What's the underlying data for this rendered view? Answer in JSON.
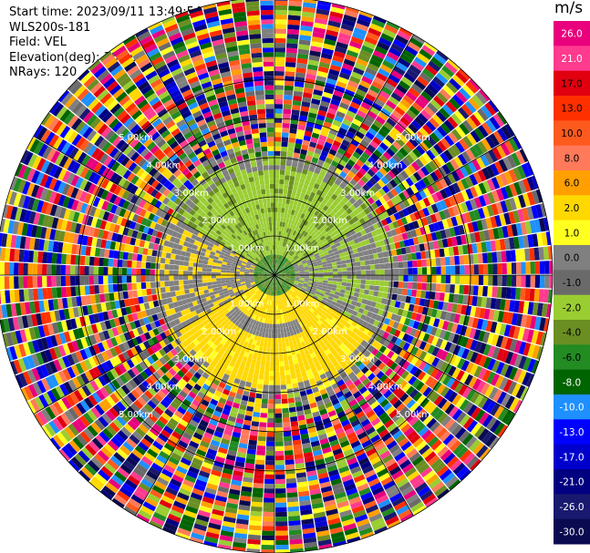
{
  "header": {
    "start_time": "Start time: 2023/09/11 13:49:54",
    "instrument": "WLS200s-181",
    "field": "Field: VEL",
    "elevation": "Elevation(deg): 35.30",
    "nrays": "NRays: 120"
  },
  "chart_data": {
    "type": "heatmap",
    "projection": "polar-ppi",
    "field": "VEL",
    "units": "m/s",
    "nrays": 120,
    "elevation_deg": 35.3,
    "range_ring_labels": [
      "1.00km",
      "2.00km",
      "3.00km",
      "4.00km",
      "5.00km"
    ],
    "range_rings_km": [
      1,
      2,
      3,
      4,
      5
    ],
    "max_range_km": 7.0,
    "clean_data_range_km": 3.0,
    "colorbar": {
      "unit": "m/s",
      "tick_labels": [
        "26.0",
        "21.0",
        "17.0",
        "13.0",
        "10.0",
        "8.0",
        "6.0",
        "2.0",
        "1.0",
        "0.0",
        "-1.0",
        "-2.0",
        "-4.0",
        "-6.0",
        "-8.0",
        "-10.0",
        "-13.0",
        "-17.0",
        "-21.0",
        "-26.0",
        "-30.0"
      ],
      "colors": [
        "#e8007d",
        "#ff3b8f",
        "#e00010",
        "#ff3000",
        "#ff5a1e",
        "#ff7a5a",
        "#ffa000",
        "#ffd800",
        "#ffff20",
        "#808080",
        "#6a6a6a",
        "#9acd32",
        "#6b8e23",
        "#228b22",
        "#006400",
        "#1e90ff",
        "#0000ff",
        "#0000cd",
        "#000080",
        "#191970",
        "#0a0a50"
      ]
    },
    "velocity_pattern": [
      {
        "sector": "north (azimuth 300-60 deg)",
        "value_range": [
          -4.0,
          -1.0
        ]
      },
      {
        "sector": "south (azimuth 120-240 deg)",
        "value_range": [
          1.0,
          2.0
        ]
      },
      {
        "sector": "east/west",
        "value_range": [
          -1.0,
          0.0
        ]
      }
    ]
  }
}
